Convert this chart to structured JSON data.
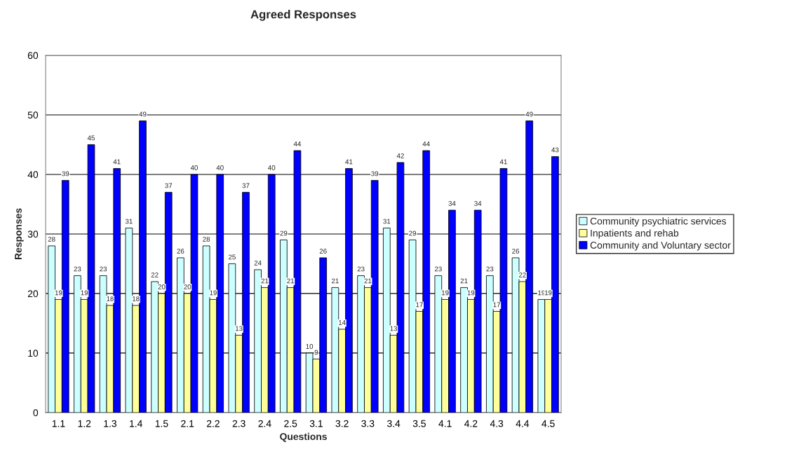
{
  "chart_data": {
    "type": "bar",
    "title": "Agreed Responses",
    "xlabel": "Questions",
    "ylabel": "Responses",
    "categories": [
      "1.1",
      "1.2",
      "1.3",
      "1.4",
      "1.5",
      "2.1",
      "2.2",
      "2.3",
      "2.4",
      "2.5",
      "3.1",
      "3.2",
      "3.3",
      "3.4",
      "3.5",
      "4.1",
      "4.2",
      "4.3",
      "4.4",
      "4.5"
    ],
    "series": [
      {
        "name": "Community psychiatric services",
        "color": "#ccffff",
        "values": [
          28,
          23,
          23,
          31,
          22,
          26,
          28,
          25,
          24,
          29,
          10,
          21,
          23,
          31,
          29,
          23,
          21,
          23,
          26,
          19
        ]
      },
      {
        "name": "Inpatients and rehab",
        "color": "#ffff99",
        "values": [
          19,
          19,
          18,
          18,
          20,
          20,
          19,
          13,
          21,
          21,
          9,
          14,
          21,
          13,
          17,
          19,
          19,
          17,
          22,
          19
        ]
      },
      {
        "name": "Community and Voluntary sector",
        "color": "#0000ff",
        "values": [
          39,
          45,
          41,
          49,
          37,
          40,
          40,
          37,
          40,
          44,
          26,
          41,
          39,
          42,
          44,
          34,
          34,
          41,
          49,
          43
        ]
      }
    ],
    "ylim": [
      0,
      60
    ],
    "yticks": [
      0,
      10,
      20,
      30,
      40,
      50,
      60
    ],
    "grid": "y",
    "legend": "right",
    "data_labels": true
  }
}
